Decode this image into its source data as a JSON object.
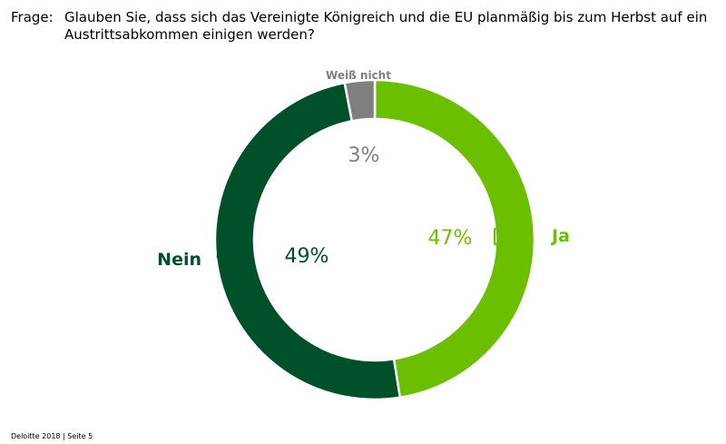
{
  "question": {
    "prefix": "Frage:",
    "text": "Glauben Sie, dass sich das Vereinigte Königreich und die EU planmäßig bis zum Herbst auf ein Austrittsabkommen einigen werden?"
  },
  "chart_data": {
    "type": "donut",
    "unit": "%",
    "slices": [
      {
        "name": "Ja",
        "value": 47,
        "label": "47%",
        "color": "#6cbf00",
        "text_color": "#6cbf00",
        "icon": "thumbs-up-icon"
      },
      {
        "name": "Nein",
        "value": 49,
        "label": "49%",
        "color": "#00502a",
        "text_color": "#00502a",
        "icon": "thumbs-down-icon"
      },
      {
        "name": "Weiß nicht",
        "value": 3,
        "label": "3%",
        "color": "#7f7f7f",
        "text_color": "#7f7f7f",
        "icon": ""
      }
    ],
    "start": "12 o'clock",
    "direction": "clockwise"
  },
  "footer": {
    "text": "Deloitte 2018 | Seite 5"
  }
}
